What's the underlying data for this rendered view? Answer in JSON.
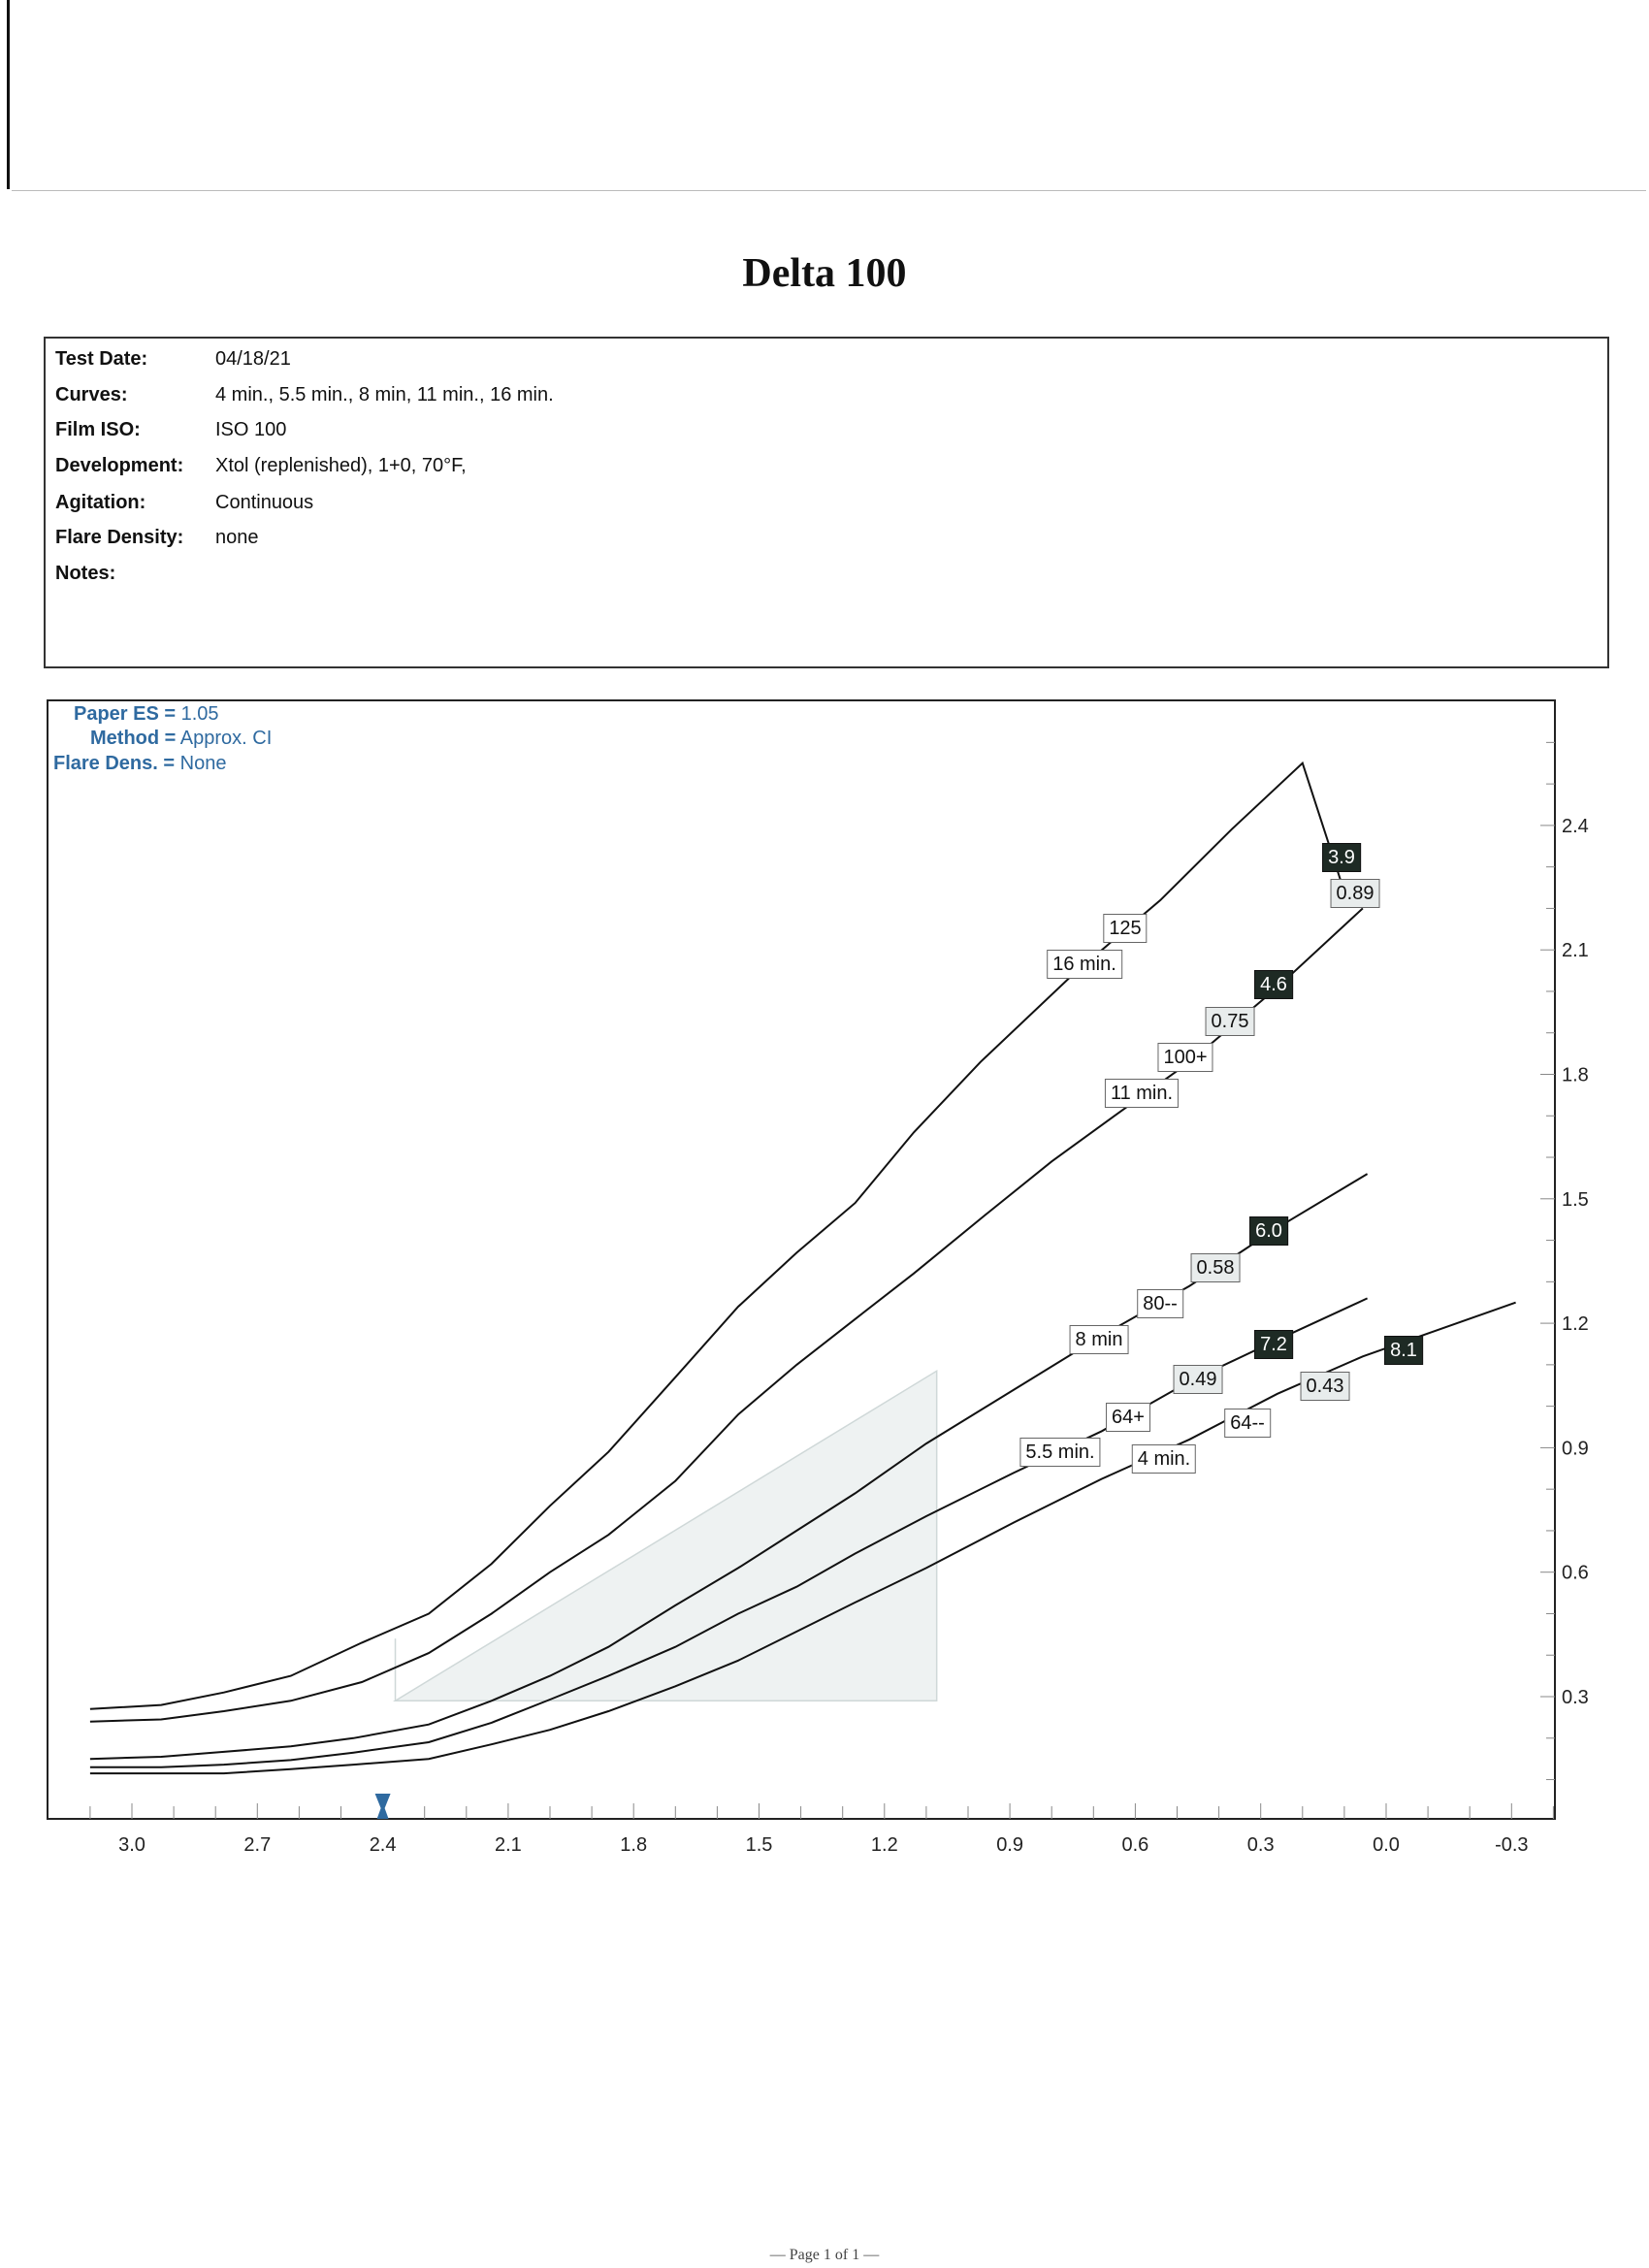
{
  "title": "Delta 100",
  "info": [
    {
      "label": "Test Date:",
      "value": "04/18/21"
    },
    {
      "label": "Curves:",
      "value": "4 min., 5.5 min., 8 min, 11 min., 16 min."
    },
    {
      "label": "Film ISO:",
      "value": "ISO 100"
    },
    {
      "label": "Development:",
      "value": "Xtol (replenished), 1+0, 70°F,"
    },
    {
      "label": "Agitation:",
      "value": "Continuous"
    },
    {
      "label": "Flare Density:",
      "value": "none"
    },
    {
      "label": "Notes:",
      "value": ""
    }
  ],
  "params": {
    "paper_es_label": "Paper ES =",
    "paper_es": "1.05",
    "method_label": "Method =",
    "method": "Approx. CI",
    "flare_label": "Flare Dens. =",
    "flare": "None"
  },
  "footer": "— Page 1 of 1 —",
  "colors": {
    "params": "#2f6aa0",
    "marker": "#2f6aa0",
    "dark_box": "#1e2a24",
    "light_box": "#e8ecec",
    "shade": "#eef2f2"
  },
  "chart_data": {
    "type": "line",
    "title": "Delta 100",
    "xlabel": "",
    "ylabel": "",
    "xlim": [
      3.1,
      -0.35
    ],
    "ylim": [
      0.0,
      2.65
    ],
    "x_ticks": [
      "3.0",
      "2.7",
      "2.4",
      "2.1",
      "1.8",
      "1.5",
      "1.2",
      "0.9",
      "0.6",
      "0.3",
      "0.0",
      "-0.3"
    ],
    "y_ticks": [
      "2.4",
      "2.1",
      "1.8",
      "1.5",
      "1.2",
      "0.9",
      "0.6",
      "0.3"
    ],
    "marker_x": 2.4,
    "shaded_region": [
      [
        2.37,
        0.29
      ],
      [
        1.075,
        0.29
      ],
      [
        1.075,
        1.085
      ]
    ],
    "series": [
      {
        "name": "16 min.",
        "film_speed": "125",
        "contrast": "0.89",
        "dark_value": "3.9",
        "points": [
          [
            3.1,
            0.27
          ],
          [
            2.93,
            0.28
          ],
          [
            2.78,
            0.31
          ],
          [
            2.62,
            0.35
          ],
          [
            2.45,
            0.43
          ],
          [
            2.29,
            0.5
          ],
          [
            2.14,
            0.62
          ],
          [
            2.0,
            0.76
          ],
          [
            1.86,
            0.89
          ],
          [
            1.7,
            1.07
          ],
          [
            1.55,
            1.24
          ],
          [
            1.41,
            1.37
          ],
          [
            1.27,
            1.49
          ],
          [
            1.13,
            1.66
          ],
          [
            0.97,
            1.83
          ],
          [
            0.75,
            2.04
          ],
          [
            0.54,
            2.22
          ],
          [
            0.37,
            2.39
          ],
          [
            0.2,
            2.55
          ],
          [
            0.1,
            2.24
          ]
        ]
      },
      {
        "name": "11 min.",
        "film_speed": "100+",
        "contrast": "0.75",
        "dark_value": "4.6",
        "points": [
          [
            3.1,
            0.24
          ],
          [
            2.93,
            0.245
          ],
          [
            2.78,
            0.265
          ],
          [
            2.62,
            0.29
          ],
          [
            2.45,
            0.335
          ],
          [
            2.29,
            0.405
          ],
          [
            2.14,
            0.5
          ],
          [
            2.0,
            0.6
          ],
          [
            1.86,
            0.69
          ],
          [
            1.7,
            0.82
          ],
          [
            1.55,
            0.98
          ],
          [
            1.41,
            1.1
          ],
          [
            1.27,
            1.21
          ],
          [
            1.13,
            1.32
          ],
          [
            0.96,
            1.46
          ],
          [
            0.8,
            1.59
          ],
          [
            0.65,
            1.7
          ],
          [
            0.47,
            1.83
          ],
          [
            0.26,
            2.01
          ],
          [
            0.056,
            2.2
          ]
        ]
      },
      {
        "name": "8 min",
        "film_speed": "80--",
        "contrast": "0.58",
        "dark_value": "6.0",
        "points": [
          [
            3.1,
            0.15
          ],
          [
            2.93,
            0.155
          ],
          [
            2.78,
            0.167
          ],
          [
            2.62,
            0.18
          ],
          [
            2.47,
            0.2
          ],
          [
            2.29,
            0.233
          ],
          [
            2.14,
            0.29
          ],
          [
            2.0,
            0.35
          ],
          [
            1.86,
            0.42
          ],
          [
            1.7,
            0.52
          ],
          [
            1.55,
            0.61
          ],
          [
            1.41,
            0.7
          ],
          [
            1.27,
            0.79
          ],
          [
            1.1,
            0.91
          ],
          [
            0.89,
            1.04
          ],
          [
            0.68,
            1.17
          ],
          [
            0.47,
            1.29
          ],
          [
            0.26,
            1.43
          ],
          [
            0.045,
            1.56
          ]
        ]
      },
      {
        "name": "5.5 min.",
        "film_speed": "64+",
        "contrast": "0.49",
        "dark_value": "7.2",
        "points": [
          [
            3.1,
            0.13
          ],
          [
            2.93,
            0.13
          ],
          [
            2.78,
            0.136
          ],
          [
            2.62,
            0.147
          ],
          [
            2.47,
            0.165
          ],
          [
            2.29,
            0.19
          ],
          [
            2.14,
            0.237
          ],
          [
            2.0,
            0.293
          ],
          [
            1.86,
            0.35
          ],
          [
            1.7,
            0.42
          ],
          [
            1.55,
            0.5
          ],
          [
            1.41,
            0.565
          ],
          [
            1.27,
            0.645
          ],
          [
            1.1,
            0.735
          ],
          [
            0.89,
            0.84
          ],
          [
            0.68,
            0.94
          ],
          [
            0.47,
            1.06
          ],
          [
            0.26,
            1.16
          ],
          [
            0.045,
            1.26
          ]
        ]
      },
      {
        "name": "4 min.",
        "film_speed": "64--",
        "contrast": "0.43",
        "dark_value": "8.1",
        "points": [
          [
            3.1,
            0.115
          ],
          [
            2.93,
            0.115
          ],
          [
            2.78,
            0.115
          ],
          [
            2.62,
            0.125
          ],
          [
            2.47,
            0.136
          ],
          [
            2.29,
            0.15
          ],
          [
            2.14,
            0.185
          ],
          [
            2.0,
            0.22
          ],
          [
            1.86,
            0.265
          ],
          [
            1.7,
            0.325
          ],
          [
            1.55,
            0.387
          ],
          [
            1.41,
            0.457
          ],
          [
            1.27,
            0.527
          ],
          [
            1.1,
            0.61
          ],
          [
            0.89,
            0.72
          ],
          [
            0.68,
            0.825
          ],
          [
            0.47,
            0.92
          ],
          [
            0.26,
            1.03
          ],
          [
            0.056,
            1.12
          ],
          [
            -0.31,
            1.25
          ]
        ]
      }
    ]
  }
}
